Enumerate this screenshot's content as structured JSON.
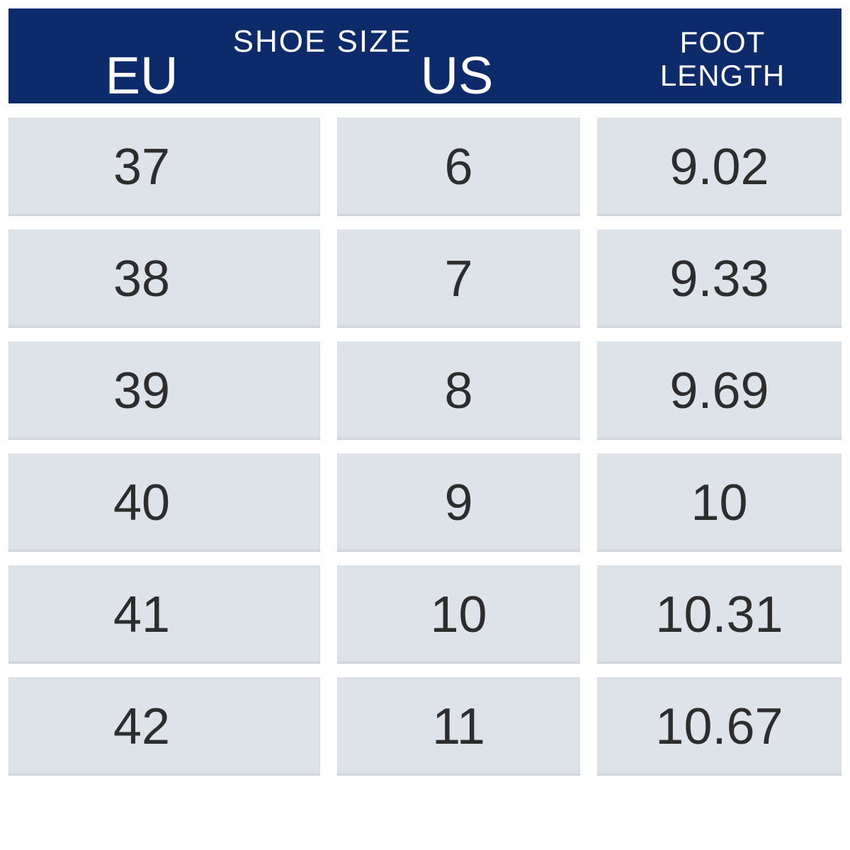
{
  "table": {
    "title": "SHOE SIZE",
    "columns": [
      {
        "id": "eu",
        "label": "EU"
      },
      {
        "id": "us",
        "label": "US"
      },
      {
        "id": "foot_length",
        "label": "FOOT LENGTH",
        "label_lines": [
          "FOOT",
          "LENGTH"
        ]
      }
    ],
    "rows": [
      {
        "eu": "37",
        "us": "6",
        "foot_length": "9.02"
      },
      {
        "eu": "38",
        "us": "7",
        "foot_length": "9.33"
      },
      {
        "eu": "39",
        "us": "8",
        "foot_length": "9.69"
      },
      {
        "eu": "40",
        "us": "9",
        "foot_length": "10"
      },
      {
        "eu": "41",
        "us": "10",
        "foot_length": "10.31"
      },
      {
        "eu": "42",
        "us": "11",
        "foot_length": "10.67"
      }
    ]
  },
  "colors": {
    "header_bg": "#0d2a6b",
    "header_text": "#ffffff",
    "cell_bg": "#dee2e9",
    "cell_text": "#2d2d2d"
  },
  "chart_data": {
    "type": "table",
    "title": "SHOE SIZE",
    "columns": [
      "EU",
      "US",
      "FOOT LENGTH"
    ],
    "rows": [
      [
        "37",
        "6",
        "9.02"
      ],
      [
        "38",
        "7",
        "9.33"
      ],
      [
        "39",
        "8",
        "9.69"
      ],
      [
        "40",
        "9",
        "10"
      ],
      [
        "41",
        "10",
        "10.31"
      ],
      [
        "42",
        "11",
        "10.67"
      ]
    ]
  }
}
